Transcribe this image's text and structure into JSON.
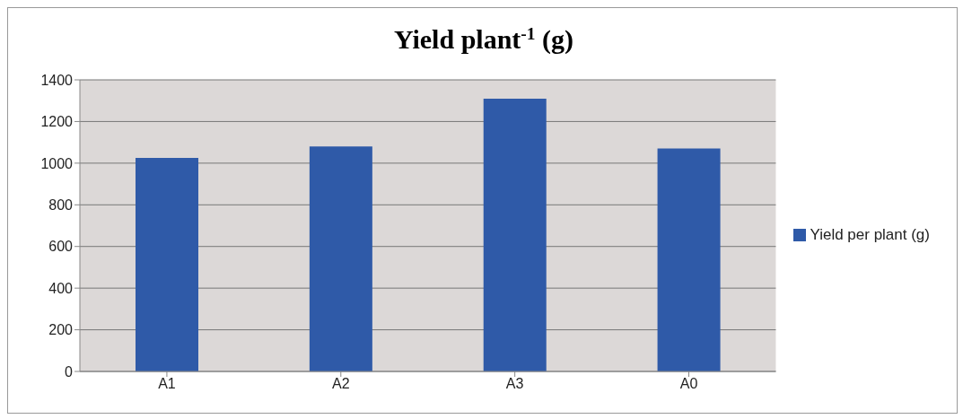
{
  "chart_data": {
    "type": "bar",
    "title": "Yield  plant$^{-1}$ (g)",
    "categories": [
      "A1",
      "A2",
      "A3",
      "A0"
    ],
    "series": [
      {
        "name": "Yield per plant (g)",
        "color": "#2f5aa8",
        "values": [
          1025,
          1080,
          1310,
          1070
        ]
      }
    ],
    "ylim": [
      0,
      1400
    ],
    "yticks": [
      0,
      200,
      400,
      600,
      800,
      1000,
      1200,
      1400
    ],
    "grid": "y",
    "legend": "right"
  }
}
